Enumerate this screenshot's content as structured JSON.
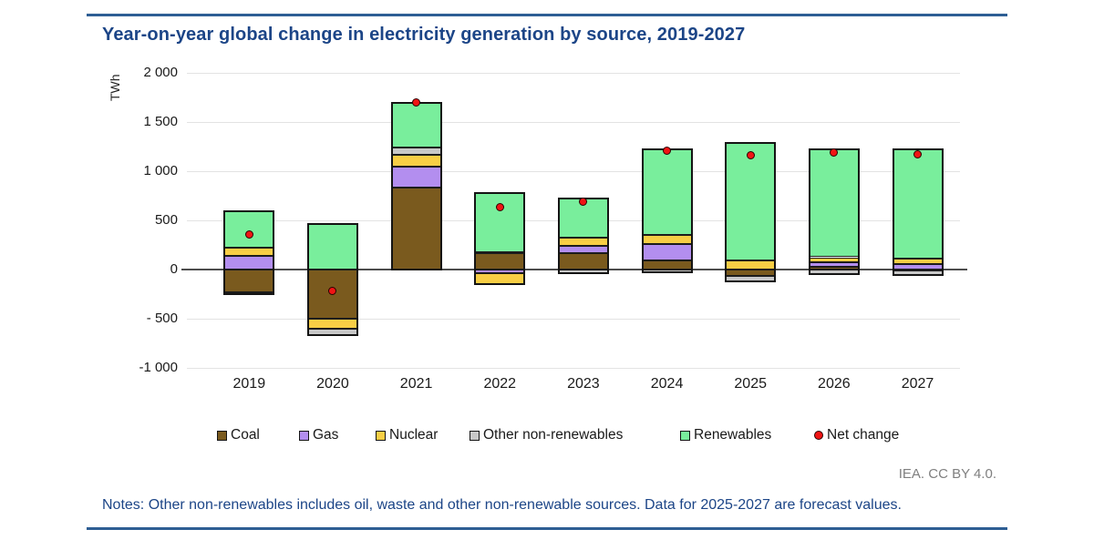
{
  "page": {
    "attribution": "IEA. CC BY 4.0.",
    "notes": "Notes: Other non-renewables includes oil, waste and other non-renewable sources. Data for 2025-2027 are forecast values.",
    "accent_blue": "#1c4587",
    "rule_blue": "#2e5e94",
    "attribution_gray": "#7f7f7f"
  },
  "chart_data": {
    "type": "bar",
    "stacked": true,
    "title": "Year-on-year global change in electricity generation by source, 2019-2027",
    "ylabel": "TWh",
    "unit": "TWh",
    "ylim": [
      -1000,
      2000
    ],
    "grid": true,
    "legend_position": "bottom",
    "yticks": [
      {
        "value": 2000,
        "label": "2 000"
      },
      {
        "value": 1500,
        "label": "1 500"
      },
      {
        "value": 1000,
        "label": "1 000"
      },
      {
        "value": 500,
        "label": "500"
      },
      {
        "value": 0,
        "label": "0"
      },
      {
        "value": -500,
        "label": "- 500"
      },
      {
        "value": -1000,
        "label": "-1 000"
      }
    ],
    "categories": [
      "2019",
      "2020",
      "2021",
      "2022",
      "2023",
      "2024",
      "2025",
      "2026",
      "2027"
    ],
    "series": [
      {
        "name": "Coal",
        "color": "#7a5a1e",
        "values": [
          -230,
          -500,
          830,
          165,
          170,
          95,
          -65,
          25,
          -10
        ]
      },
      {
        "name": "Gas",
        "color": "#b38eef",
        "values": [
          140,
          0,
          215,
          -40,
          70,
          165,
          0,
          45,
          60
        ]
      },
      {
        "name": "Nuclear",
        "color": "#f8ce45",
        "values": [
          85,
          -100,
          125,
          -110,
          85,
          95,
          90,
          55,
          55
        ]
      },
      {
        "name": "Other non-renewables",
        "color": "#c8c8c8",
        "values": [
          -20,
          -70,
          75,
          15,
          -40,
          -25,
          -55,
          -50,
          -50
        ]
      },
      {
        "name": "Renewables",
        "color": "#79ee9c",
        "values": [
          365,
          460,
          450,
          595,
          400,
          870,
          1200,
          1100,
          1110
        ]
      }
    ],
    "net_change": {
      "name": "Net change",
      "color": "#f01414",
      "values": [
        355,
        -215,
        1695,
        630,
        690,
        1210,
        1165,
        1190,
        1175
      ]
    }
  }
}
